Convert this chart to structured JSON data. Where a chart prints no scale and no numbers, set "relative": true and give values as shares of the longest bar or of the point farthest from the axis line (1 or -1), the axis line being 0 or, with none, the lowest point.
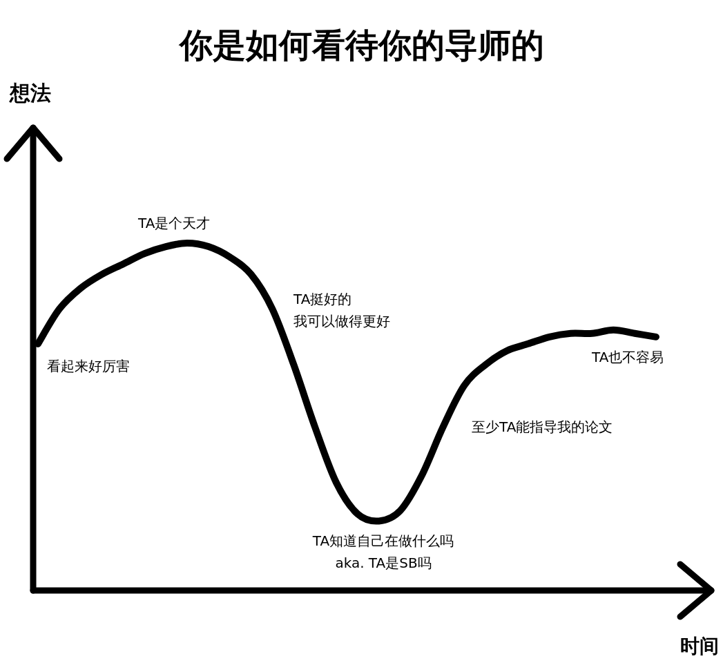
{
  "chart_data": {
    "type": "line",
    "relative": true,
    "title": "你是如何看待你的导师的",
    "xlabel": "时间",
    "categories": [
      null,
      null,
      null,
      null,
      null,
      null,
      null,
      null,
      null,
      null,
      null,
      null,
      null,
      null,
      null,
      null,
      null,
      null,
      null,
      null,
      null,
      null,
      null,
      null,
      null,
      null,
      null,
      null,
      null,
      null
    ],
    "values": [
      0.71,
      0.81,
      0.87,
      0.91,
      0.94,
      0.97,
      0.99,
      1,
      0.99,
      0.96,
      0.91,
      0.81,
      0.65,
      0.47,
      0.31,
      0.22,
      0.2,
      0.23,
      0.33,
      0.47,
      0.59,
      0.65,
      0.69,
      0.71,
      0.73,
      0.74,
      0.74,
      0.75,
      0.74,
      0.73
    ],
    "color": "#000000",
    "annotations": [
      "想法",
      "TA是个天才",
      "看起来好厉害",
      "TA挺好的",
      "我可以做得更好",
      "TA知道自己在做什么吗",
      "aka. TA是SB吗",
      "至少TA能指导我的论文",
      "TA也不容易"
    ]
  }
}
